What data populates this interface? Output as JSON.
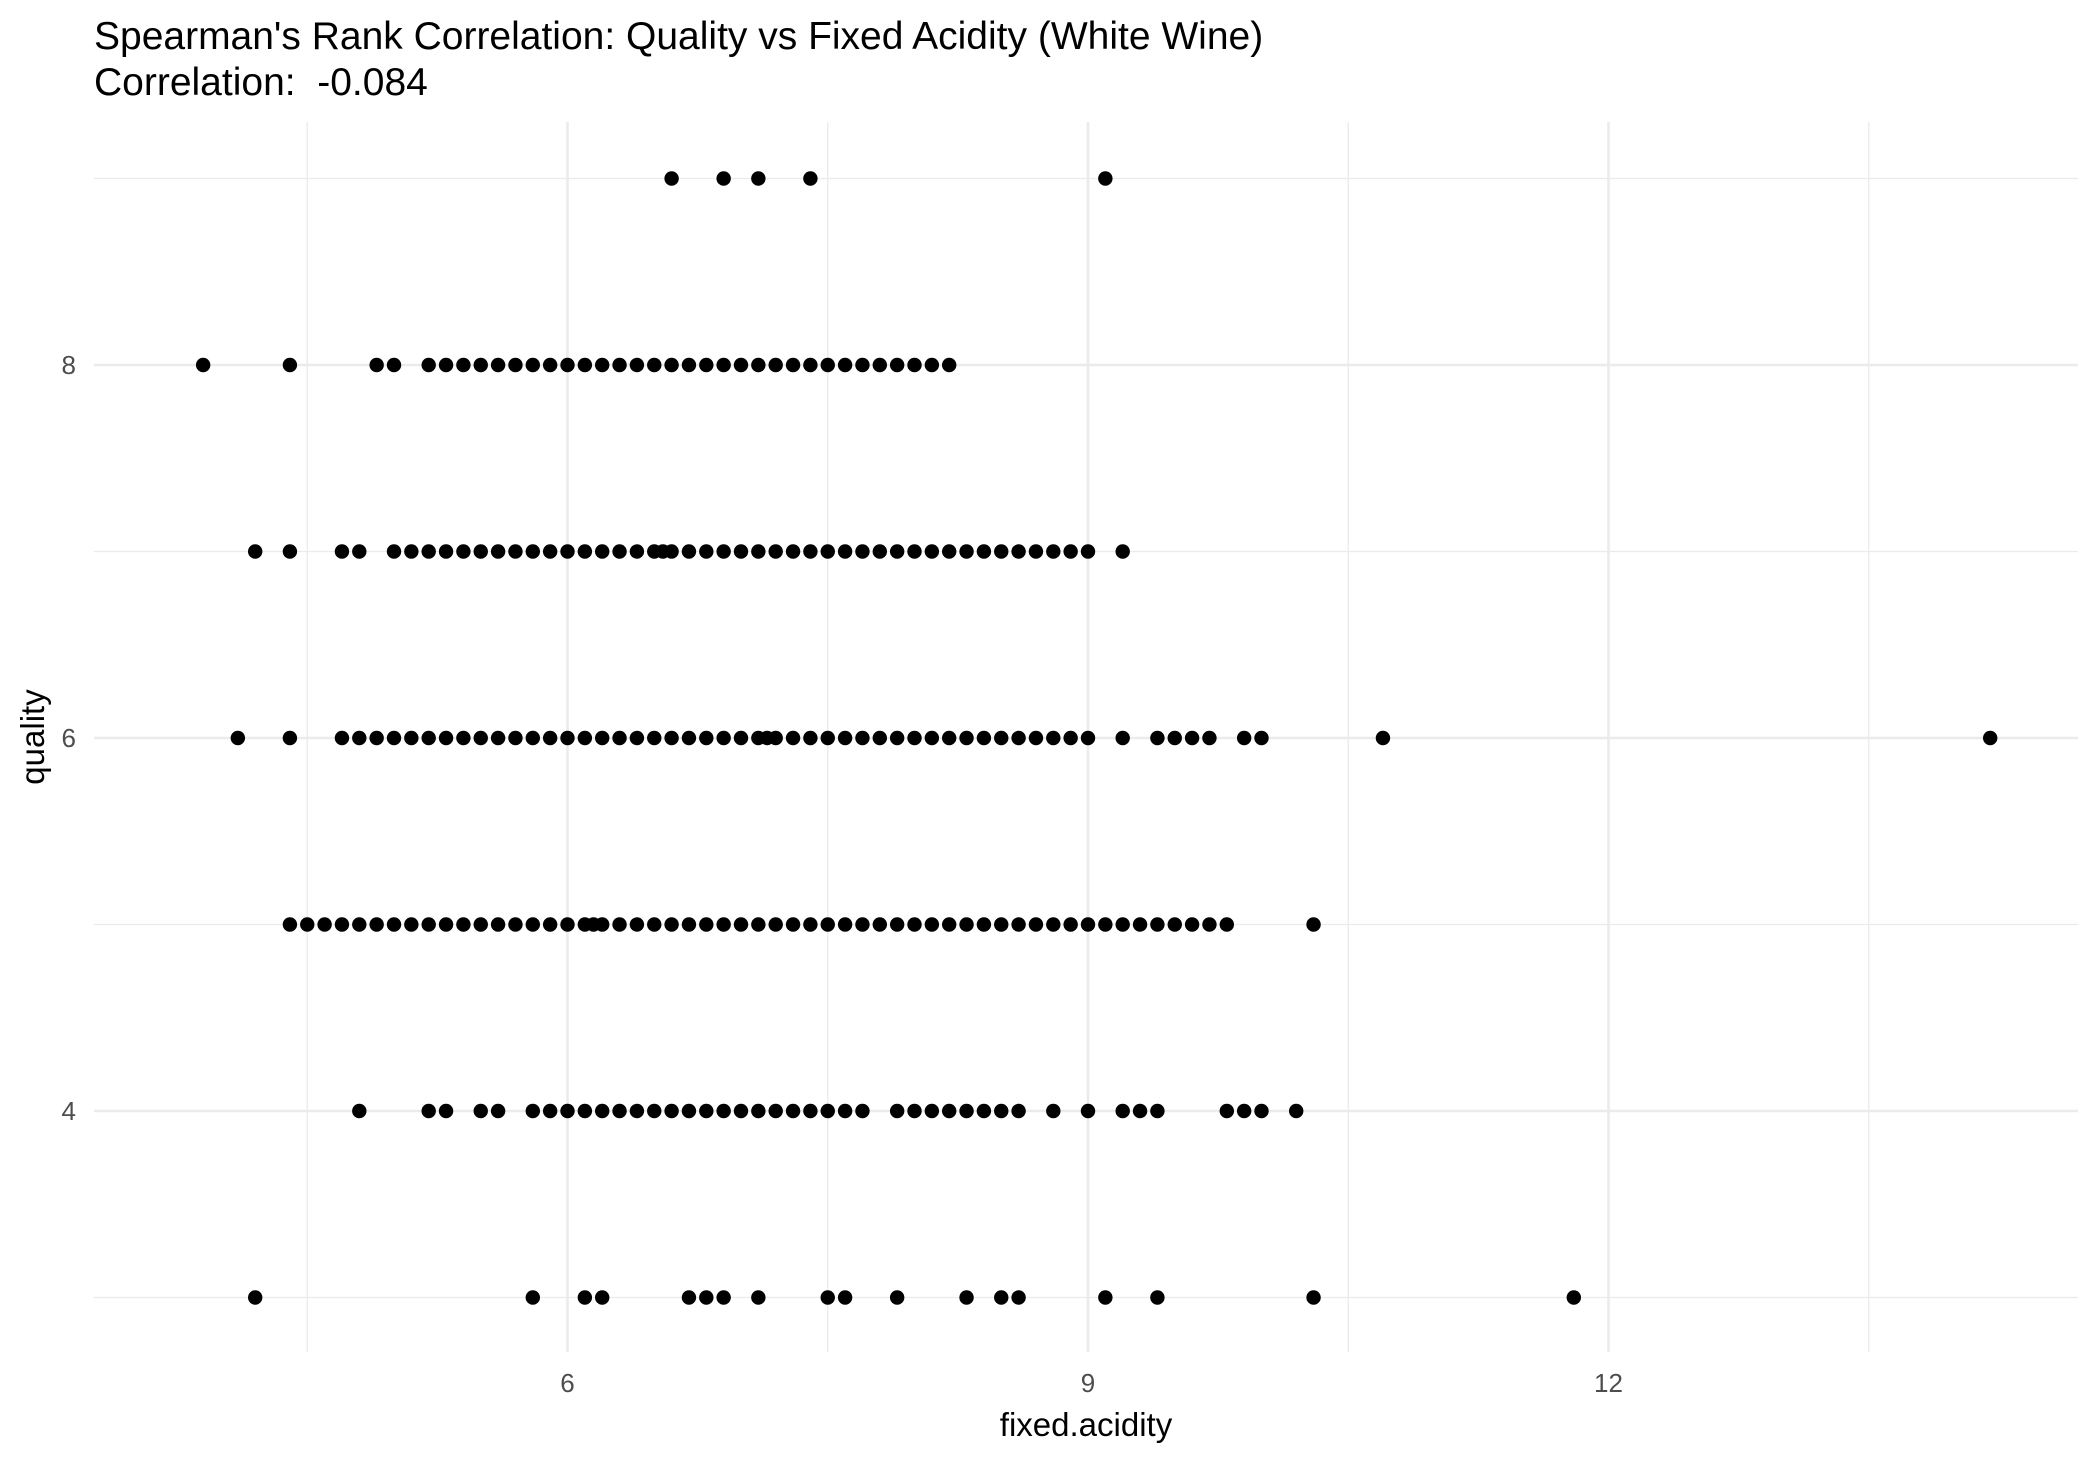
{
  "chart_data": {
    "type": "scatter",
    "title": "Spearman's Rank Correlation: Quality vs Fixed Acidity (White Wine)",
    "subtitle": "Correlation:  -0.084",
    "xlabel": "fixed.acidity",
    "ylabel": "quality",
    "xlim": [
      3.8,
      14.2
    ],
    "ylim": [
      2.7,
      9.3
    ],
    "x_ticks": [
      6,
      9,
      12
    ],
    "y_ticks": [
      4,
      6,
      8
    ],
    "grid": true,
    "point_color": "#000000",
    "background": "#ffffff",
    "grid_color": "#ebebeb",
    "series": [
      {
        "points": [
          {
            "x": 4.2,
            "y": 3
          },
          {
            "x": 5.8,
            "y": 3
          },
          {
            "x": 6.1,
            "y": 3
          },
          {
            "x": 6.2,
            "y": 3
          },
          {
            "x": 6.7,
            "y": 3
          },
          {
            "x": 6.8,
            "y": 3
          },
          {
            "x": 6.9,
            "y": 3
          },
          {
            "x": 7.1,
            "y": 3
          },
          {
            "x": 7.5,
            "y": 3
          },
          {
            "x": 7.6,
            "y": 3
          },
          {
            "x": 7.9,
            "y": 3
          },
          {
            "x": 8.3,
            "y": 3
          },
          {
            "x": 8.5,
            "y": 3
          },
          {
            "x": 8.6,
            "y": 3
          },
          {
            "x": 9.1,
            "y": 3
          },
          {
            "x": 9.4,
            "y": 3
          },
          {
            "x": 10.3,
            "y": 3
          },
          {
            "x": 11.8,
            "y": 3
          },
          {
            "x": 4.8,
            "y": 4
          },
          {
            "x": 5.2,
            "y": 4
          },
          {
            "x": 5.3,
            "y": 4
          },
          {
            "x": 5.5,
            "y": 4
          },
          {
            "x": 5.6,
            "y": 4
          },
          {
            "x": 5.8,
            "y": 4
          },
          {
            "x": 5.9,
            "y": 4
          },
          {
            "x": 6.0,
            "y": 4
          },
          {
            "x": 6.1,
            "y": 4
          },
          {
            "x": 6.2,
            "y": 4
          },
          {
            "x": 6.3,
            "y": 4
          },
          {
            "x": 6.4,
            "y": 4
          },
          {
            "x": 6.5,
            "y": 4
          },
          {
            "x": 6.6,
            "y": 4
          },
          {
            "x": 6.7,
            "y": 4
          },
          {
            "x": 6.8,
            "y": 4
          },
          {
            "x": 6.9,
            "y": 4
          },
          {
            "x": 7.0,
            "y": 4
          },
          {
            "x": 7.1,
            "y": 4
          },
          {
            "x": 7.2,
            "y": 4
          },
          {
            "x": 7.3,
            "y": 4
          },
          {
            "x": 7.4,
            "y": 4
          },
          {
            "x": 7.5,
            "y": 4
          },
          {
            "x": 7.6,
            "y": 4
          },
          {
            "x": 7.7,
            "y": 4
          },
          {
            "x": 7.9,
            "y": 4
          },
          {
            "x": 8.0,
            "y": 4
          },
          {
            "x": 8.1,
            "y": 4
          },
          {
            "x": 8.2,
            "y": 4
          },
          {
            "x": 8.3,
            "y": 4
          },
          {
            "x": 8.4,
            "y": 4
          },
          {
            "x": 8.5,
            "y": 4
          },
          {
            "x": 8.6,
            "y": 4
          },
          {
            "x": 8.8,
            "y": 4
          },
          {
            "x": 9.0,
            "y": 4
          },
          {
            "x": 9.2,
            "y": 4
          },
          {
            "x": 9.3,
            "y": 4
          },
          {
            "x": 9.4,
            "y": 4
          },
          {
            "x": 9.8,
            "y": 4
          },
          {
            "x": 9.9,
            "y": 4
          },
          {
            "x": 10.0,
            "y": 4
          },
          {
            "x": 10.2,
            "y": 4
          },
          {
            "x": 4.4,
            "y": 5
          },
          {
            "x": 4.5,
            "y": 5
          },
          {
            "x": 4.6,
            "y": 5
          },
          {
            "x": 4.7,
            "y": 5
          },
          {
            "x": 4.8,
            "y": 5
          },
          {
            "x": 4.9,
            "y": 5
          },
          {
            "x": 5.0,
            "y": 5
          },
          {
            "x": 5.1,
            "y": 5
          },
          {
            "x": 5.2,
            "y": 5
          },
          {
            "x": 5.3,
            "y": 5
          },
          {
            "x": 5.4,
            "y": 5
          },
          {
            "x": 5.5,
            "y": 5
          },
          {
            "x": 5.6,
            "y": 5
          },
          {
            "x": 5.7,
            "y": 5
          },
          {
            "x": 5.8,
            "y": 5
          },
          {
            "x": 5.9,
            "y": 5
          },
          {
            "x": 6.0,
            "y": 5
          },
          {
            "x": 6.1,
            "y": 5
          },
          {
            "x": 6.15,
            "y": 5
          },
          {
            "x": 6.2,
            "y": 5
          },
          {
            "x": 6.3,
            "y": 5
          },
          {
            "x": 6.4,
            "y": 5
          },
          {
            "x": 6.5,
            "y": 5
          },
          {
            "x": 6.6,
            "y": 5
          },
          {
            "x": 6.7,
            "y": 5
          },
          {
            "x": 6.8,
            "y": 5
          },
          {
            "x": 6.9,
            "y": 5
          },
          {
            "x": 7.0,
            "y": 5
          },
          {
            "x": 7.1,
            "y": 5
          },
          {
            "x": 7.2,
            "y": 5
          },
          {
            "x": 7.3,
            "y": 5
          },
          {
            "x": 7.4,
            "y": 5
          },
          {
            "x": 7.5,
            "y": 5
          },
          {
            "x": 7.6,
            "y": 5
          },
          {
            "x": 7.7,
            "y": 5
          },
          {
            "x": 7.8,
            "y": 5
          },
          {
            "x": 7.9,
            "y": 5
          },
          {
            "x": 8.0,
            "y": 5
          },
          {
            "x": 8.1,
            "y": 5
          },
          {
            "x": 8.2,
            "y": 5
          },
          {
            "x": 8.3,
            "y": 5
          },
          {
            "x": 8.4,
            "y": 5
          },
          {
            "x": 8.5,
            "y": 5
          },
          {
            "x": 8.6,
            "y": 5
          },
          {
            "x": 8.7,
            "y": 5
          },
          {
            "x": 8.8,
            "y": 5
          },
          {
            "x": 8.9,
            "y": 5
          },
          {
            "x": 9.0,
            "y": 5
          },
          {
            "x": 9.1,
            "y": 5
          },
          {
            "x": 9.2,
            "y": 5
          },
          {
            "x": 9.3,
            "y": 5
          },
          {
            "x": 9.4,
            "y": 5
          },
          {
            "x": 9.5,
            "y": 5
          },
          {
            "x": 9.6,
            "y": 5
          },
          {
            "x": 9.7,
            "y": 5
          },
          {
            "x": 9.8,
            "y": 5
          },
          {
            "x": 10.3,
            "y": 5
          },
          {
            "x": 4.1,
            "y": 6
          },
          {
            "x": 4.4,
            "y": 6
          },
          {
            "x": 4.7,
            "y": 6
          },
          {
            "x": 4.8,
            "y": 6
          },
          {
            "x": 4.9,
            "y": 6
          },
          {
            "x": 5.0,
            "y": 6
          },
          {
            "x": 5.1,
            "y": 6
          },
          {
            "x": 5.2,
            "y": 6
          },
          {
            "x": 5.3,
            "y": 6
          },
          {
            "x": 5.4,
            "y": 6
          },
          {
            "x": 5.5,
            "y": 6
          },
          {
            "x": 5.6,
            "y": 6
          },
          {
            "x": 5.7,
            "y": 6
          },
          {
            "x": 5.8,
            "y": 6
          },
          {
            "x": 5.9,
            "y": 6
          },
          {
            "x": 6.0,
            "y": 6
          },
          {
            "x": 6.1,
            "y": 6
          },
          {
            "x": 6.2,
            "y": 6
          },
          {
            "x": 6.3,
            "y": 6
          },
          {
            "x": 6.4,
            "y": 6
          },
          {
            "x": 6.5,
            "y": 6
          },
          {
            "x": 6.6,
            "y": 6
          },
          {
            "x": 6.7,
            "y": 6
          },
          {
            "x": 6.8,
            "y": 6
          },
          {
            "x": 6.9,
            "y": 6
          },
          {
            "x": 7.0,
            "y": 6
          },
          {
            "x": 7.1,
            "y": 6
          },
          {
            "x": 7.15,
            "y": 6
          },
          {
            "x": 7.2,
            "y": 6
          },
          {
            "x": 7.3,
            "y": 6
          },
          {
            "x": 7.4,
            "y": 6
          },
          {
            "x": 7.5,
            "y": 6
          },
          {
            "x": 7.6,
            "y": 6
          },
          {
            "x": 7.7,
            "y": 6
          },
          {
            "x": 7.8,
            "y": 6
          },
          {
            "x": 7.9,
            "y": 6
          },
          {
            "x": 8.0,
            "y": 6
          },
          {
            "x": 8.1,
            "y": 6
          },
          {
            "x": 8.2,
            "y": 6
          },
          {
            "x": 8.3,
            "y": 6
          },
          {
            "x": 8.4,
            "y": 6
          },
          {
            "x": 8.5,
            "y": 6
          },
          {
            "x": 8.6,
            "y": 6
          },
          {
            "x": 8.7,
            "y": 6
          },
          {
            "x": 8.8,
            "y": 6
          },
          {
            "x": 8.9,
            "y": 6
          },
          {
            "x": 9.0,
            "y": 6
          },
          {
            "x": 9.2,
            "y": 6
          },
          {
            "x": 9.4,
            "y": 6
          },
          {
            "x": 9.5,
            "y": 6
          },
          {
            "x": 9.6,
            "y": 6
          },
          {
            "x": 9.7,
            "y": 6
          },
          {
            "x": 9.9,
            "y": 6
          },
          {
            "x": 10.0,
            "y": 6
          },
          {
            "x": 10.7,
            "y": 6
          },
          {
            "x": 14.2,
            "y": 6
          },
          {
            "x": 4.2,
            "y": 7
          },
          {
            "x": 4.4,
            "y": 7
          },
          {
            "x": 4.7,
            "y": 7
          },
          {
            "x": 4.8,
            "y": 7
          },
          {
            "x": 5.0,
            "y": 7
          },
          {
            "x": 5.1,
            "y": 7
          },
          {
            "x": 5.2,
            "y": 7
          },
          {
            "x": 5.3,
            "y": 7
          },
          {
            "x": 5.4,
            "y": 7
          },
          {
            "x": 5.5,
            "y": 7
          },
          {
            "x": 5.6,
            "y": 7
          },
          {
            "x": 5.7,
            "y": 7
          },
          {
            "x": 5.8,
            "y": 7
          },
          {
            "x": 5.9,
            "y": 7
          },
          {
            "x": 6.0,
            "y": 7
          },
          {
            "x": 6.1,
            "y": 7
          },
          {
            "x": 6.2,
            "y": 7
          },
          {
            "x": 6.3,
            "y": 7
          },
          {
            "x": 6.4,
            "y": 7
          },
          {
            "x": 6.5,
            "y": 7
          },
          {
            "x": 6.55,
            "y": 7
          },
          {
            "x": 6.6,
            "y": 7
          },
          {
            "x": 6.7,
            "y": 7
          },
          {
            "x": 6.8,
            "y": 7
          },
          {
            "x": 6.9,
            "y": 7
          },
          {
            "x": 7.0,
            "y": 7
          },
          {
            "x": 7.1,
            "y": 7
          },
          {
            "x": 7.2,
            "y": 7
          },
          {
            "x": 7.3,
            "y": 7
          },
          {
            "x": 7.4,
            "y": 7
          },
          {
            "x": 7.5,
            "y": 7
          },
          {
            "x": 7.6,
            "y": 7
          },
          {
            "x": 7.7,
            "y": 7
          },
          {
            "x": 7.8,
            "y": 7
          },
          {
            "x": 7.9,
            "y": 7
          },
          {
            "x": 8.0,
            "y": 7
          },
          {
            "x": 8.1,
            "y": 7
          },
          {
            "x": 8.2,
            "y": 7
          },
          {
            "x": 8.3,
            "y": 7
          },
          {
            "x": 8.4,
            "y": 7
          },
          {
            "x": 8.5,
            "y": 7
          },
          {
            "x": 8.6,
            "y": 7
          },
          {
            "x": 8.7,
            "y": 7
          },
          {
            "x": 8.8,
            "y": 7
          },
          {
            "x": 8.9,
            "y": 7
          },
          {
            "x": 9.0,
            "y": 7
          },
          {
            "x": 9.2,
            "y": 7
          },
          {
            "x": 3.9,
            "y": 8
          },
          {
            "x": 4.4,
            "y": 8
          },
          {
            "x": 4.9,
            "y": 8
          },
          {
            "x": 5.0,
            "y": 8
          },
          {
            "x": 5.2,
            "y": 8
          },
          {
            "x": 5.3,
            "y": 8
          },
          {
            "x": 5.4,
            "y": 8
          },
          {
            "x": 5.5,
            "y": 8
          },
          {
            "x": 5.6,
            "y": 8
          },
          {
            "x": 5.7,
            "y": 8
          },
          {
            "x": 5.8,
            "y": 8
          },
          {
            "x": 5.9,
            "y": 8
          },
          {
            "x": 6.0,
            "y": 8
          },
          {
            "x": 6.1,
            "y": 8
          },
          {
            "x": 6.2,
            "y": 8
          },
          {
            "x": 6.3,
            "y": 8
          },
          {
            "x": 6.4,
            "y": 8
          },
          {
            "x": 6.5,
            "y": 8
          },
          {
            "x": 6.6,
            "y": 8
          },
          {
            "x": 6.7,
            "y": 8
          },
          {
            "x": 6.8,
            "y": 8
          },
          {
            "x": 6.9,
            "y": 8
          },
          {
            "x": 7.0,
            "y": 8
          },
          {
            "x": 7.1,
            "y": 8
          },
          {
            "x": 7.2,
            "y": 8
          },
          {
            "x": 7.3,
            "y": 8
          },
          {
            "x": 7.4,
            "y": 8
          },
          {
            "x": 7.5,
            "y": 8
          },
          {
            "x": 7.6,
            "y": 8
          },
          {
            "x": 7.7,
            "y": 8
          },
          {
            "x": 7.8,
            "y": 8
          },
          {
            "x": 7.9,
            "y": 8
          },
          {
            "x": 8.0,
            "y": 8
          },
          {
            "x": 8.1,
            "y": 8
          },
          {
            "x": 8.2,
            "y": 8
          },
          {
            "x": 6.6,
            "y": 9
          },
          {
            "x": 6.9,
            "y": 9
          },
          {
            "x": 7.1,
            "y": 9
          },
          {
            "x": 7.4,
            "y": 9
          },
          {
            "x": 9.1,
            "y": 9
          }
        ]
      }
    ]
  }
}
